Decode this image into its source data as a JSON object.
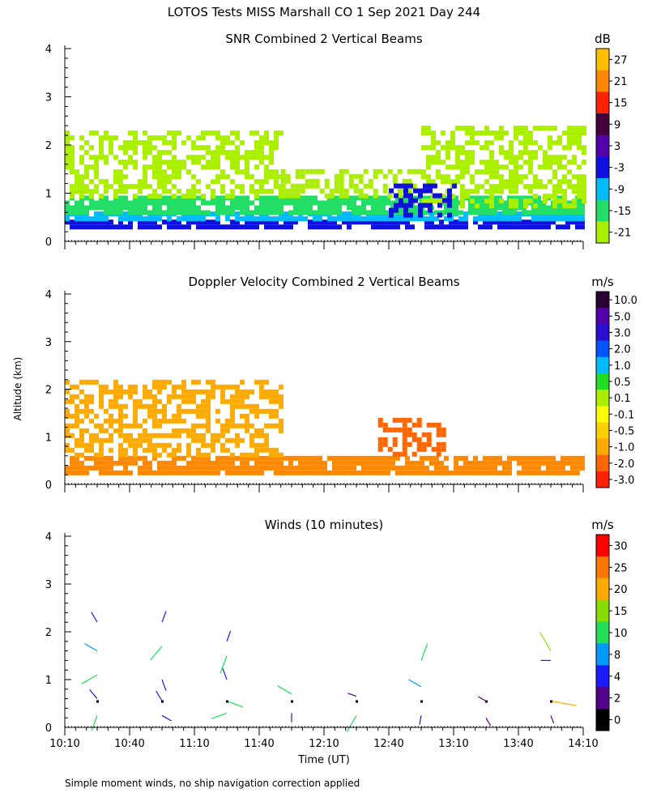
{
  "figure": {
    "title": "LOTOS Tests MISS Marshall CO   1 Sep 2021 Day 244",
    "ylabel": "Altitude (km)",
    "xlabel": "Time (UT)",
    "footnote": "Simple moment winds, no ship navigation correction applied",
    "x_ticks": [
      "10:10",
      "10:40",
      "11:10",
      "11:40",
      "12:10",
      "12:40",
      "13:10",
      "13:40",
      "14:10"
    ],
    "y_ticks": [
      "0",
      "1",
      "2",
      "3",
      "4"
    ]
  },
  "chart_data": [
    {
      "type": "heatmap",
      "title": "SNR Combined 2 Vertical Beams",
      "units": "dB",
      "xlabel": "Time (UT)",
      "ylabel": "Altitude (km)",
      "xlim_minutes": [
        0,
        240
      ],
      "ylim": [
        0,
        4
      ],
      "colorbar": {
        "labels": [
          "27",
          "21",
          "15",
          "9",
          "3",
          "-3",
          "-9",
          "-15",
          "-21"
        ],
        "colors": [
          "#ffbf00",
          "#ff8800",
          "#ff2200",
          "#44003d",
          "#5500aa",
          "#1010e0",
          "#00bbff",
          "#22dd66",
          "#aaee00"
        ]
      },
      "layers": [
        {
          "x_range": [
            0,
            240
          ],
          "alt": [
            0.25,
            0.45
          ],
          "color": "#1010e0"
        },
        {
          "x_range": [
            0,
            240
          ],
          "alt": [
            0.45,
            0.62
          ],
          "color": "#00bbff"
        },
        {
          "x_range": [
            0,
            240
          ],
          "alt": [
            0.62,
            0.95
          ],
          "color": "#22dd66"
        },
        {
          "x_range": [
            0,
            100
          ],
          "alt": [
            0.95,
            2.3
          ],
          "color": "#aaee00"
        },
        {
          "x_range": [
            100,
            165
          ],
          "alt": [
            0.95,
            1.5
          ],
          "color": "#aaee00"
        },
        {
          "x_range": [
            165,
            240
          ],
          "alt": [
            0.7,
            2.4
          ],
          "color": "#aaee00"
        },
        {
          "x_range": [
            150,
            180
          ],
          "alt": [
            0.55,
            1.2
          ],
          "color": "#1010e0"
        }
      ]
    },
    {
      "type": "heatmap",
      "title": "Doppler Velocity Combined 2 Vertical Beams",
      "units": "m/s",
      "xlabel": "Time (UT)",
      "ylabel": "Altitude (km)",
      "xlim_minutes": [
        0,
        240
      ],
      "ylim": [
        0,
        4
      ],
      "colorbar": {
        "labels": [
          "10.0",
          "5.0",
          "3.0",
          "2.0",
          "1.0",
          "0.5",
          "0.1",
          "-0.1",
          "-0.5",
          "-1.0",
          "-2.0",
          "-3.0"
        ],
        "colors": [
          "#2a0033",
          "#5500aa",
          "#2a10d0",
          "#0055ff",
          "#00bbff",
          "#22dd22",
          "#aaee00",
          "#ffff00",
          "#ffd000",
          "#ffaa00",
          "#ff6600",
          "#ff2200"
        ]
      },
      "layers": [
        {
          "x_range": [
            0,
            240
          ],
          "alt": [
            0.25,
            0.6
          ],
          "color": "#ff8800"
        },
        {
          "x_range": [
            0,
            100
          ],
          "alt": [
            0.6,
            2.2
          ],
          "color": "#ffaa00"
        },
        {
          "x_range": [
            145,
            175
          ],
          "alt": [
            0.6,
            1.4
          ],
          "color": "#ff6600"
        }
      ]
    },
    {
      "type": "scatter",
      "title": "Winds (10 minutes)",
      "units": "m/s",
      "xlabel": "Time (UT)",
      "ylabel": "Altitude (km)",
      "xlim_minutes": [
        0,
        240
      ],
      "ylim": [
        0,
        4
      ],
      "colorbar": {
        "labels": [
          "30",
          "25",
          "20",
          "15",
          "10",
          "8",
          "4",
          "2",
          "0"
        ],
        "colors": [
          "#ff0000",
          "#ff7700",
          "#ffaa00",
          "#88dd00",
          "#22dd55",
          "#0099ff",
          "#1a1aff",
          "#550088",
          "#000000"
        ]
      },
      "profile_times_minutes": [
        15,
        45,
        75,
        105,
        135,
        165,
        195,
        225
      ],
      "barbs": [
        {
          "t": 15,
          "alt": 2.2,
          "speed": 6,
          "dir": 330
        },
        {
          "t": 15,
          "alt": 1.6,
          "speed": 9,
          "dir": 300
        },
        {
          "t": 15,
          "alt": 1.1,
          "speed": 13,
          "dir": 240
        },
        {
          "t": 15,
          "alt": 0.6,
          "speed": 6,
          "dir": 320
        },
        {
          "t": 15,
          "alt": 0.25,
          "speed": 11,
          "dir": 200
        },
        {
          "t": 45,
          "alt": 2.2,
          "speed": 6,
          "dir": 20
        },
        {
          "t": 45,
          "alt": 1.7,
          "speed": 13,
          "dir": 220
        },
        {
          "t": 45,
          "alt": 1.0,
          "speed": 6,
          "dir": 160
        },
        {
          "t": 45,
          "alt": 0.55,
          "speed": 6,
          "dir": 330
        },
        {
          "t": 45,
          "alt": 0.25,
          "speed": 5,
          "dir": 120
        },
        {
          "t": 75,
          "alt": 1.8,
          "speed": 5,
          "dir": 20
        },
        {
          "t": 75,
          "alt": 1.5,
          "speed": 14,
          "dir": 200
        },
        {
          "t": 75,
          "alt": 1.0,
          "speed": 6,
          "dir": 340
        },
        {
          "t": 75,
          "alt": 0.55,
          "speed": 12,
          "dir": 110
        },
        {
          "t": 75,
          "alt": 0.3,
          "speed": 11,
          "dir": 250
        },
        {
          "t": 105,
          "alt": 0.7,
          "speed": 11,
          "dir": 300
        },
        {
          "t": 105,
          "alt": 0.3,
          "speed": 3,
          "dir": 180
        },
        {
          "t": 135,
          "alt": 0.65,
          "speed": 3,
          "dir": 290
        },
        {
          "t": 135,
          "alt": 0.25,
          "speed": 14,
          "dir": 210
        },
        {
          "t": 165,
          "alt": 1.4,
          "speed": 13,
          "dir": 20
        },
        {
          "t": 165,
          "alt": 0.85,
          "speed": 9,
          "dir": 300
        },
        {
          "t": 165,
          "alt": 0.25,
          "speed": 3,
          "dir": 190
        },
        {
          "t": 195,
          "alt": 0.55,
          "speed": 3,
          "dir": 300
        },
        {
          "t": 195,
          "alt": 0.2,
          "speed": 3,
          "dir": 150
        },
        {
          "t": 225,
          "alt": 1.6,
          "speed": 17,
          "dir": 330
        },
        {
          "t": 225,
          "alt": 1.4,
          "speed": 4,
          "dir": 270
        },
        {
          "t": 225,
          "alt": 0.55,
          "speed": 22,
          "dir": 100
        },
        {
          "t": 225,
          "alt": 0.25,
          "speed": 2,
          "dir": 160
        }
      ]
    }
  ]
}
